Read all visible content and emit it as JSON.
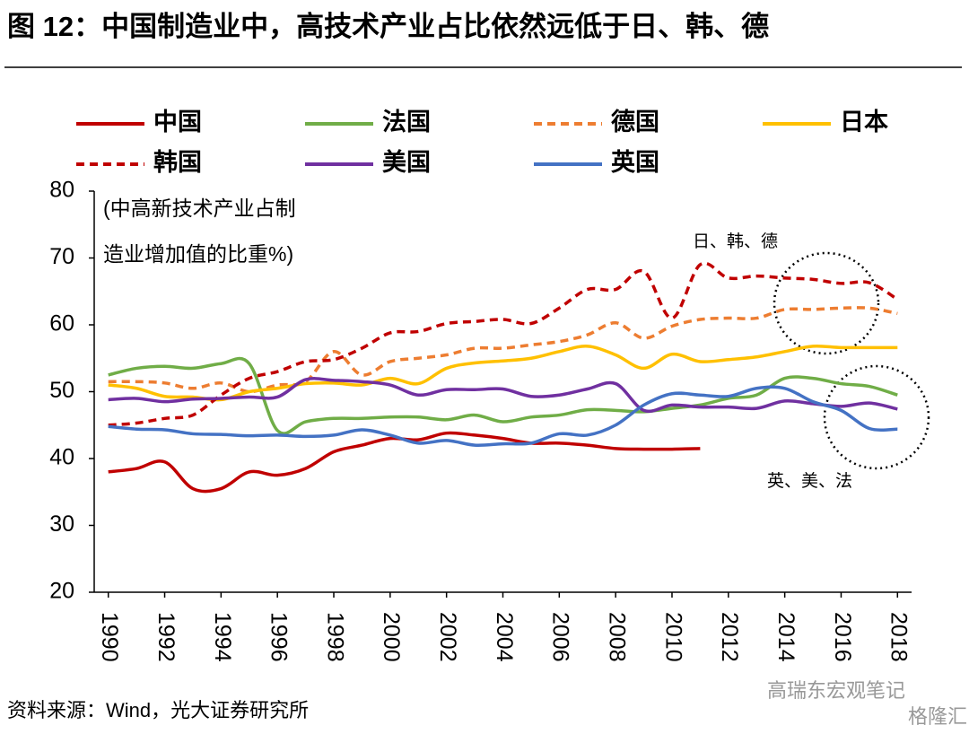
{
  "chart_data": {
    "type": "line",
    "title": "图 12：中国制造业中，高技术产业占比依然远低于日、韩、德",
    "y_label_lines": [
      "(中高新技术产业占制",
      "造业增加值的比重%)"
    ],
    "annotations": [
      "日、韩、德",
      "英、美、法"
    ],
    "source": "资料来源：Wind，光大证券研究所",
    "watermark": [
      "高瑞东宏观笔记",
      "格隆汇"
    ],
    "x": [
      1990,
      1991,
      1992,
      1993,
      1994,
      1995,
      1996,
      1997,
      1998,
      1999,
      2000,
      2001,
      2002,
      2003,
      2004,
      2005,
      2006,
      2007,
      2008,
      2009,
      2010,
      2011,
      2012,
      2013,
      2014,
      2015,
      2016,
      2017,
      2018
    ],
    "xlim": [
      1989.5,
      2018.5
    ],
    "xticks": [
      1990,
      1992,
      1994,
      1996,
      1998,
      2000,
      2002,
      2004,
      2006,
      2008,
      2010,
      2012,
      2014,
      2016,
      2018
    ],
    "ylim": [
      20,
      80
    ],
    "yticks": [
      20,
      30,
      40,
      50,
      60,
      70,
      80
    ],
    "series": [
      {
        "name": "中国",
        "color": "#c00000",
        "dash": false,
        "values": [
          38,
          38.5,
          39.5,
          35.5,
          35.5,
          38,
          37.5,
          38.5,
          41,
          42,
          43,
          42.8,
          43.8,
          43.5,
          43,
          42.3,
          42.3,
          42,
          41.5,
          41.4,
          41.4,
          41.5,
          null,
          null,
          null,
          null,
          null,
          null,
          null
        ]
      },
      {
        "name": "法国",
        "color": "#70ad47",
        "dash": false,
        "values": [
          52.5,
          53.5,
          53.8,
          53.5,
          54.2,
          54.2,
          44.2,
          45.5,
          46,
          46,
          46.2,
          46.2,
          45.8,
          46.5,
          45.5,
          46.2,
          46.5,
          47.3,
          47.2,
          47,
          47.5,
          48,
          49,
          49.5,
          52,
          52,
          51.2,
          50.8,
          49.5
        ]
      },
      {
        "name": "德国",
        "color": "#ed7d31",
        "dash": true,
        "values": [
          51.5,
          51.5,
          51.3,
          50.5,
          51.3,
          50,
          51,
          51.5,
          56,
          52.5,
          54.5,
          55,
          55.5,
          56.5,
          56.5,
          57,
          57.5,
          58.5,
          60.3,
          58,
          59.8,
          60.8,
          61,
          61,
          62.3,
          62.3,
          62.5,
          62.5,
          61.7
        ]
      },
      {
        "name": "日本",
        "color": "#ffc000",
        "dash": false,
        "values": [
          51,
          50.5,
          49.3,
          49.2,
          48.8,
          50,
          50.5,
          51.2,
          51.3,
          51,
          52,
          51.2,
          53.5,
          54.3,
          54.6,
          55,
          56,
          56.8,
          55.5,
          53.5,
          55.6,
          54.5,
          54.8,
          55.2,
          56,
          56.8,
          56.6,
          56.6,
          56.6
        ]
      },
      {
        "name": "韩国",
        "color": "#c00000",
        "dash": true,
        "values": [
          45,
          45.3,
          46,
          46.5,
          49.5,
          52,
          53,
          54.5,
          54.8,
          56.5,
          58.8,
          59,
          60.2,
          60.5,
          60.8,
          60.2,
          62.5,
          65.3,
          65.3,
          68,
          61,
          69,
          67,
          67.3,
          67,
          66.8,
          66.2,
          66.3,
          63.8
        ]
      },
      {
        "name": "美国",
        "color": "#7030a0",
        "dash": false,
        "values": [
          48.8,
          49,
          48.5,
          48.9,
          49,
          49.2,
          49.2,
          51.8,
          51.7,
          51.5,
          51,
          49.5,
          50.3,
          50.3,
          50.4,
          49.3,
          49.5,
          50.4,
          51.2,
          47.2,
          48,
          47.7,
          47.7,
          47.5,
          48.6,
          48.2,
          47.8,
          48.3,
          47.4
        ]
      },
      {
        "name": "英国",
        "color": "#4472c4",
        "dash": false,
        "values": [
          44.8,
          44.4,
          44.3,
          43.7,
          43.6,
          43.4,
          43.5,
          43.3,
          43.5,
          44.3,
          43.5,
          42.3,
          42.7,
          42,
          42.2,
          42.3,
          43.7,
          43.5,
          45,
          48,
          49.7,
          49.5,
          49.3,
          50.5,
          50.5,
          48.5,
          47.2,
          44.5,
          44.4
        ]
      }
    ]
  }
}
